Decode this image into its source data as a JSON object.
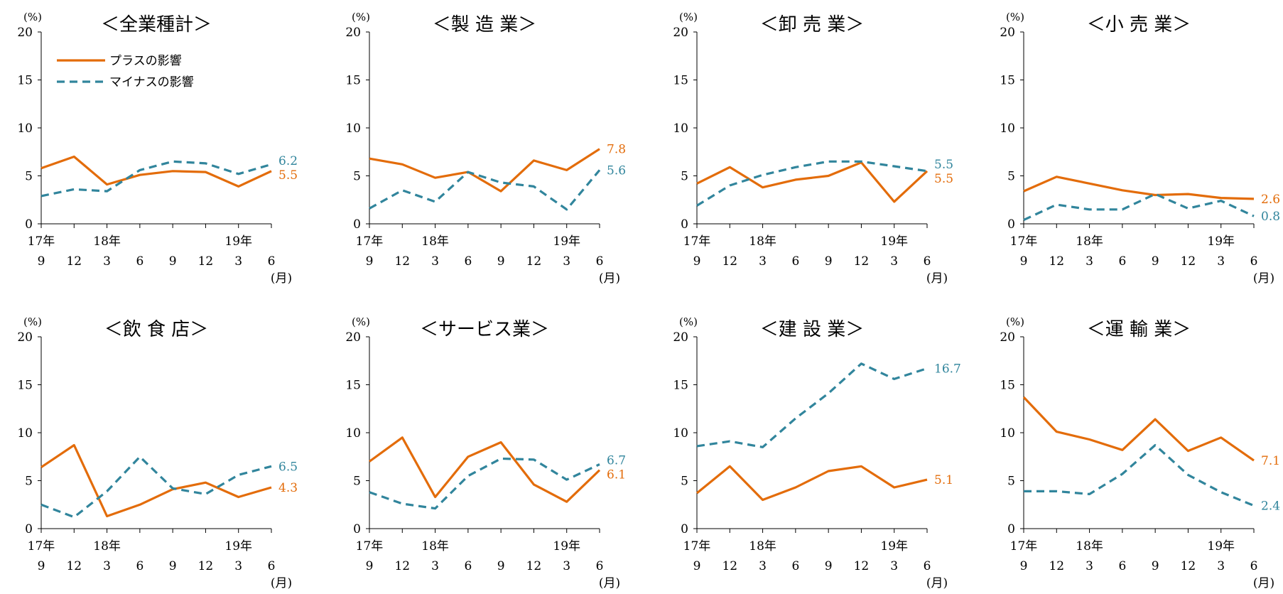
{
  "legend": {
    "plus_label": "プラスの影響",
    "minus_label": "マイナスの影響"
  },
  "colors": {
    "plus": "#E36C0A",
    "minus": "#31859C",
    "axis": "#000000"
  },
  "y_unit": "(%)",
  "month_unit": "(月)",
  "x_ticks": [
    "9",
    "12",
    "3",
    "6",
    "9",
    "12",
    "3",
    "6"
  ],
  "year_labels": [
    {
      "label": "17年",
      "index": 0
    },
    {
      "label": "18年",
      "index": 2
    },
    {
      "label": "19年",
      "index": 6
    }
  ],
  "y_ticks": [
    "0",
    "5",
    "10",
    "15",
    "20"
  ],
  "chart_data": [
    {
      "type": "line",
      "title": "＜全業種計＞",
      "ylim": [
        0,
        20
      ],
      "categories": [
        "17年9",
        "12",
        "18年3",
        "6",
        "9",
        "12",
        "19年3",
        "6"
      ],
      "series": [
        {
          "name": "プラスの影響",
          "values": [
            5.8,
            7.0,
            4.1,
            5.1,
            5.5,
            5.4,
            3.9,
            5.5
          ],
          "end_label": "5.5"
        },
        {
          "name": "マイナスの影響",
          "values": [
            2.9,
            3.6,
            3.4,
            5.6,
            6.5,
            6.3,
            5.2,
            6.2
          ],
          "end_label": "6.2"
        }
      ]
    },
    {
      "type": "line",
      "title": "＜製 造 業＞",
      "ylim": [
        0,
        20
      ],
      "categories": [
        "17年9",
        "12",
        "18年3",
        "6",
        "9",
        "12",
        "19年3",
        "6"
      ],
      "series": [
        {
          "name": "プラスの影響",
          "values": [
            6.8,
            6.2,
            4.8,
            5.4,
            3.4,
            6.6,
            5.6,
            7.8
          ],
          "end_label": "7.8"
        },
        {
          "name": "マイナスの影響",
          "values": [
            1.6,
            3.5,
            2.3,
            5.4,
            4.3,
            3.9,
            1.5,
            5.6
          ],
          "end_label": "5.6"
        }
      ]
    },
    {
      "type": "line",
      "title": "＜卸 売 業＞",
      "ylim": [
        0,
        20
      ],
      "categories": [
        "17年9",
        "12",
        "18年3",
        "6",
        "9",
        "12",
        "19年3",
        "6"
      ],
      "series": [
        {
          "name": "プラスの影響",
          "values": [
            4.2,
            5.9,
            3.8,
            4.6,
            5.0,
            6.4,
            2.3,
            5.5
          ],
          "end_label": "5.5"
        },
        {
          "name": "マイナスの影響",
          "values": [
            1.9,
            4.0,
            5.1,
            5.9,
            6.5,
            6.5,
            6.0,
            5.5
          ],
          "end_label": "5.5"
        }
      ]
    },
    {
      "type": "line",
      "title": "＜小 売 業＞",
      "ylim": [
        0,
        20
      ],
      "categories": [
        "17年9",
        "12",
        "18年3",
        "6",
        "9",
        "12",
        "19年3",
        "6"
      ],
      "series": [
        {
          "name": "プラスの影響",
          "values": [
            3.4,
            4.9,
            4.2,
            3.5,
            3.0,
            3.1,
            2.7,
            2.6
          ],
          "end_label": "2.6"
        },
        {
          "name": "マイナスの影響",
          "values": [
            0.4,
            2.0,
            1.5,
            1.5,
            3.1,
            1.6,
            2.4,
            0.8
          ],
          "end_label": "0.8"
        }
      ]
    },
    {
      "type": "line",
      "title": "＜飲 食 店＞",
      "ylim": [
        0,
        20
      ],
      "categories": [
        "17年9",
        "12",
        "18年3",
        "6",
        "9",
        "12",
        "19年3",
        "6"
      ],
      "series": [
        {
          "name": "プラスの影響",
          "values": [
            6.4,
            8.7,
            1.3,
            2.5,
            4.1,
            4.8,
            3.3,
            4.3
          ],
          "end_label": "4.3"
        },
        {
          "name": "マイナスの影響",
          "values": [
            2.5,
            1.2,
            3.9,
            7.5,
            4.2,
            3.6,
            5.6,
            6.5
          ],
          "end_label": "6.5"
        }
      ]
    },
    {
      "type": "line",
      "title": "＜サービス業＞",
      "ylim": [
        0,
        20
      ],
      "categories": [
        "17年9",
        "12",
        "18年3",
        "6",
        "9",
        "12",
        "19年3",
        "6"
      ],
      "series": [
        {
          "name": "プラスの影響",
          "values": [
            7.0,
            9.5,
            3.3,
            7.5,
            9.0,
            4.6,
            2.8,
            6.1
          ],
          "end_label": "6.1"
        },
        {
          "name": "マイナスの影響",
          "values": [
            3.8,
            2.6,
            2.1,
            5.5,
            7.3,
            7.2,
            5.1,
            6.7
          ],
          "end_label": "6.7"
        }
      ]
    },
    {
      "type": "line",
      "title": "＜建 設 業＞",
      "ylim": [
        0,
        20
      ],
      "categories": [
        "17年9",
        "12",
        "18年3",
        "6",
        "9",
        "12",
        "19年3",
        "6"
      ],
      "series": [
        {
          "name": "プラスの影響",
          "values": [
            3.7,
            6.5,
            3.0,
            4.3,
            6.0,
            6.5,
            4.3,
            5.1
          ],
          "end_label": "5.1"
        },
        {
          "name": "マイナスの影響",
          "values": [
            8.6,
            9.1,
            8.5,
            11.5,
            14.1,
            17.2,
            15.6,
            16.7
          ],
          "end_label": "16.7"
        }
      ]
    },
    {
      "type": "line",
      "title": "＜運 輸 業＞",
      "ylim": [
        0,
        20
      ],
      "categories": [
        "17年9",
        "12",
        "18年3",
        "6",
        "9",
        "12",
        "19年3",
        "6"
      ],
      "series": [
        {
          "name": "プラスの影響",
          "values": [
            13.7,
            10.1,
            9.3,
            8.2,
            11.4,
            8.1,
            9.5,
            7.1
          ],
          "end_label": "7.1"
        },
        {
          "name": "マイナスの影響",
          "values": [
            3.9,
            3.9,
            3.6,
            5.7,
            8.7,
            5.6,
            3.8,
            2.4
          ],
          "end_label": "2.4"
        }
      ]
    }
  ]
}
